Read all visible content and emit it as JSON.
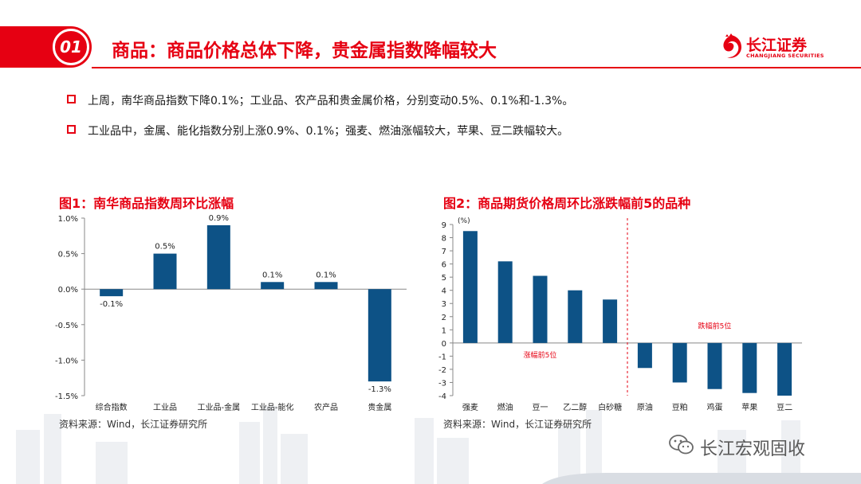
{
  "header": {
    "badge": "01",
    "title": "商品：商品价格总体下降，贵金属指数降幅较大"
  },
  "logo": {
    "cn": "长江证券",
    "en": "CHANGJIANG SECURITIES"
  },
  "bullets": [
    "上周，南华商品指数下降0.1%；工业品、农产品和贵金属价格，分别变动0.5%、0.1%和-1.3%。",
    "工业品中，金属、能化指数分别上涨0.9%、0.1%；强麦、燃油涨幅较大，苹果、豆二跌幅较大。"
  ],
  "chart1": {
    "title": "图1：南华商品指数周环比涨幅",
    "source": "资料来源：Wind，长江证券研究所"
  },
  "chart2": {
    "title": "图2：商品期货价格周环比涨跌幅前5的品种",
    "source": "资料来源：Wind，长江证券研究所"
  },
  "watermark": "长江宏观固收",
  "colors": {
    "accent": "#e60012",
    "bar": "#0d5286",
    "divider": "#e60012"
  },
  "chart_data": [
    {
      "type": "bar",
      "title": "图1：南华商品指数周环比涨幅",
      "categories": [
        "综合指数",
        "工业品",
        "工业品-金属",
        "工业品-能化",
        "农产品",
        "贵金属"
      ],
      "values": [
        -0.1,
        0.5,
        0.9,
        0.1,
        0.1,
        -1.3
      ],
      "data_labels": [
        "-0.1%",
        "0.5%",
        "0.9%",
        "0.1%",
        "0.1%",
        "-1.3%"
      ],
      "yticks": [
        "-1.5%",
        "-1.0%",
        "-0.5%",
        "0.0%",
        "0.5%",
        "1.0%"
      ],
      "ylim": [
        -1.5,
        1.0
      ],
      "grid": false
    },
    {
      "type": "bar",
      "title": "图2：商品期货价格周环比涨跌幅前5的品种",
      "categories": [
        "强麦",
        "燃油",
        "豆一",
        "乙二醇",
        "白砂糖",
        "原油",
        "豆粕",
        "鸡蛋",
        "苹果",
        "豆二"
      ],
      "values": [
        8.5,
        6.2,
        5.1,
        4.0,
        3.3,
        -1.9,
        -3.0,
        -3.5,
        -3.8,
        -4.0
      ],
      "ylabel": "(%)",
      "yticks": [
        "-4",
        "-3",
        "-2",
        "-1",
        "0",
        "1",
        "2",
        "3",
        "4",
        "5",
        "6",
        "7",
        "8",
        "9"
      ],
      "ylim": [
        -4,
        9
      ],
      "annotations": [
        "涨幅前5位",
        "跌幅前5位"
      ],
      "grid": false
    }
  ]
}
